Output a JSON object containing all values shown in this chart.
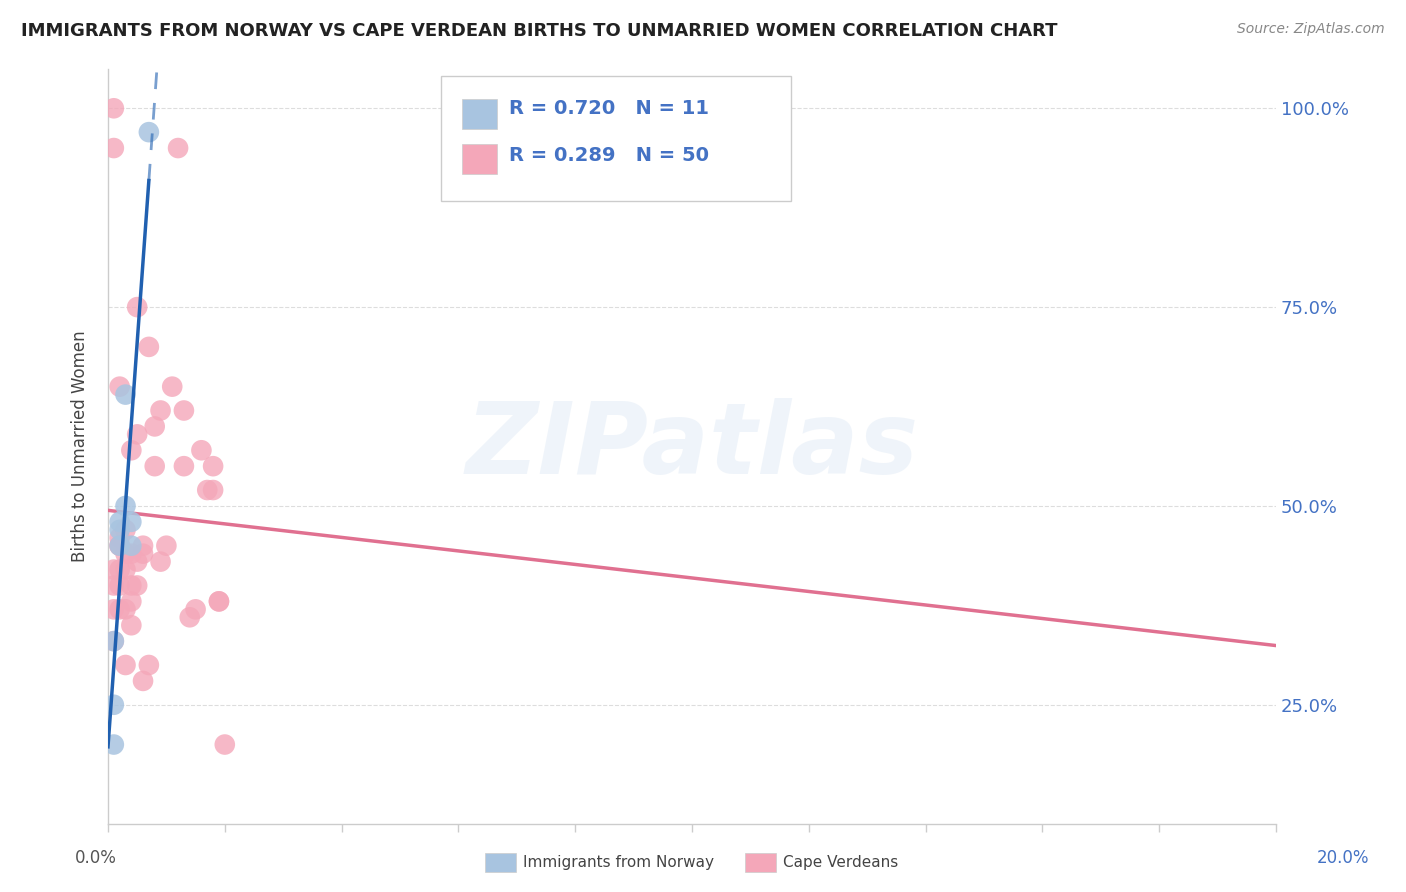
{
  "title": "IMMIGRANTS FROM NORWAY VS CAPE VERDEAN BIRTHS TO UNMARRIED WOMEN CORRELATION CHART",
  "source": "Source: ZipAtlas.com",
  "ylabel": "Births to Unmarried Women",
  "y_ticks": [
    0.25,
    0.5,
    0.75,
    1.0
  ],
  "y_tick_labels": [
    "25.0%",
    "50.0%",
    "75.0%",
    "100.0%"
  ],
  "xlim": [
    0.0,
    0.2
  ],
  "ylim": [
    0.1,
    1.05
  ],
  "norway_R": 0.72,
  "norway_N": 11,
  "cape_verde_R": 0.289,
  "cape_verde_N": 50,
  "norway_color": "#a8c4e0",
  "cape_verde_color": "#f4a7b9",
  "norway_line_color": "#2060b0",
  "cape_verde_line_color": "#e07090",
  "legend_label_norway": "Immigrants from Norway",
  "legend_label_cape_verde": "Cape Verdeans",
  "watermark": "ZIPatlas",
  "norway_x": [
    0.001,
    0.001,
    0.001,
    0.002,
    0.002,
    0.002,
    0.003,
    0.003,
    0.004,
    0.004,
    0.007
  ],
  "norway_y": [
    0.2,
    0.25,
    0.33,
    0.45,
    0.47,
    0.48,
    0.5,
    0.64,
    0.45,
    0.48,
    0.97
  ],
  "cape_verde_x": [
    0.001,
    0.001,
    0.001,
    0.001,
    0.002,
    0.002,
    0.002,
    0.002,
    0.002,
    0.003,
    0.003,
    0.003,
    0.003,
    0.004,
    0.004,
    0.004,
    0.004,
    0.005,
    0.005,
    0.005,
    0.006,
    0.006,
    0.006,
    0.007,
    0.007,
    0.008,
    0.008,
    0.009,
    0.009,
    0.01,
    0.011,
    0.012,
    0.013,
    0.013,
    0.014,
    0.015,
    0.016,
    0.017,
    0.018,
    0.018,
    0.019,
    0.019,
    0.001,
    0.001,
    0.002,
    0.002,
    0.003,
    0.004,
    0.005,
    0.02
  ],
  "cape_verde_y": [
    0.33,
    0.37,
    0.4,
    0.42,
    0.37,
    0.4,
    0.42,
    0.45,
    0.46,
    0.37,
    0.42,
    0.44,
    0.47,
    0.35,
    0.4,
    0.57,
    0.38,
    0.4,
    0.43,
    0.59,
    0.28,
    0.44,
    0.45,
    0.3,
    0.7,
    0.55,
    0.6,
    0.43,
    0.62,
    0.45,
    0.65,
    0.95,
    0.55,
    0.62,
    0.36,
    0.37,
    0.57,
    0.52,
    0.52,
    0.55,
    0.38,
    0.38,
    0.95,
    1.0,
    0.45,
    0.65,
    0.3,
    0.44,
    0.75,
    0.2
  ]
}
